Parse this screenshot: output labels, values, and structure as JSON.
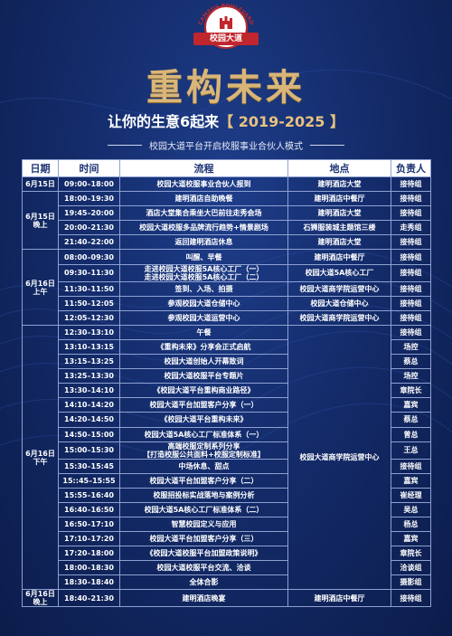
{
  "logo": {
    "arc_text": "CAMPUS BOULEVARD",
    "band_text": "校园大道"
  },
  "title": "重构未来",
  "subtitle": {
    "prefix": "让你的生意6起来",
    "years": "【 2019-2025 】"
  },
  "tagline": "校园大道平台开启校服事业合伙人模式",
  "colors": {
    "accent_gold": "#d9b678",
    "background": "#142c6b",
    "brand_red": "#c0262d"
  },
  "table": {
    "headers": [
      "日期",
      "时间",
      "流程",
      "地点",
      "负责人"
    ],
    "groups": [
      {
        "date_lines": [
          "6月15日",
          ""
        ],
        "location": null,
        "rows": [
          {
            "time": "09:00–18:00",
            "process": [
              "校园大道校服事业合伙人报到"
            ],
            "location": "建明酒店大堂",
            "owner": "接待组"
          }
        ]
      },
      {
        "date_lines": [
          "6月15日",
          "晚上"
        ],
        "location": null,
        "rows": [
          {
            "time": "18:00–19:30",
            "process": [
              "建明酒店自助晚餐"
            ],
            "location": "建明酒店中餐厅",
            "owner": "接待组"
          },
          {
            "time": "19:45–20:00",
            "process": [
              "酒店大堂集合乘坐大巴前往走秀会场"
            ],
            "location": "建明酒店大堂",
            "owner": "接待组"
          },
          {
            "time": "20:00–21:30",
            "process": [
              "校园大道校服多品牌流行趋势+情景剧场"
            ],
            "location": "石狮服装城主题馆三楼",
            "owner": "走秀组"
          },
          {
            "time": "21:40–22:00",
            "process": [
              "返回建明酒店休息"
            ],
            "location": "建明酒店大堂",
            "owner": "接待组"
          }
        ]
      },
      {
        "date_lines": [
          "6月16日",
          "上午"
        ],
        "location": null,
        "rows": [
          {
            "time": "08:00–09:30",
            "process": [
              "叫醒、早餐"
            ],
            "location": "建明酒店中餐厅",
            "owner": "接待组"
          },
          {
            "time": "09:30–11:30",
            "process": [
              "走进校园大道校服5A核心工厂（一）",
              "走进校园大道校服5A核心工厂（二）"
            ],
            "location": "校园大道5A核心工厂",
            "owner": "接待组"
          },
          {
            "time": "11:30–11:50",
            "process": [
              "签到、入场、拍摄"
            ],
            "location": "校园大道商学院运营中心",
            "owner": "接待组"
          },
          {
            "time": "11:50–12:05",
            "process": [
              "参观校园大道仓储中心"
            ],
            "location": "校园大道仓储中心",
            "owner": "接待组"
          },
          {
            "time": "12:05–12:30",
            "process": [
              "参观校园大道运营中心"
            ],
            "location": "校园大道商学院运营中心",
            "owner": "接待组"
          }
        ]
      },
      {
        "date_lines": [
          "6月16日",
          "下午"
        ],
        "location": "校园大道商学院运营中心",
        "rows": [
          {
            "time": "12:30–13:10",
            "process": [
              "午餐"
            ],
            "owner": "接待组"
          },
          {
            "time": "13:10–13:15",
            "process": [
              "《重构未来》分享会正式启航"
            ],
            "owner": "场控"
          },
          {
            "time": "13:15–13:25",
            "process": [
              "校园大道创始人开幕致词"
            ],
            "owner": "蔡总"
          },
          {
            "time": "13:25–13:30",
            "process": [
              "校园大道校服平台专题片"
            ],
            "owner": "场控"
          },
          {
            "time": "13:30–14:10",
            "process": [
              "《校园大道平台重构商业路径》"
            ],
            "owner": "章院长"
          },
          {
            "time": "14:10–14:20",
            "process": [
              "校园大道平台加盟客户分享（一）"
            ],
            "owner": "嘉宾"
          },
          {
            "time": "14:20–14:50",
            "process": [
              "《校园大道平台重构未来》"
            ],
            "owner": "蔡总"
          },
          {
            "time": "14:50–15:00",
            "process": [
              "校园大道5A核心工厂标准体系（一）"
            ],
            "owner": "曾总"
          },
          {
            "time": "15:00–15:30",
            "process": [
              "高端校服定制系列分享",
              "【打造校服公共面料+校服定制标准】"
            ],
            "owner": "王总"
          },
          {
            "time": "15:30–15:45",
            "process": [
              "中场休息、甜点"
            ],
            "owner": "接待组"
          },
          {
            "time": "15::45–15:55",
            "process": [
              "校园大道平台加盟客户分享（二）"
            ],
            "owner": "嘉宾"
          },
          {
            "time": "15:55–16:40",
            "process": [
              "校服招投标实战落地与案例分析"
            ],
            "owner": "崔经理"
          },
          {
            "time": "16:40–16:50",
            "process": [
              "校园大道5A核心工厂标准体系（二）"
            ],
            "owner": "吴总"
          },
          {
            "time": "16:50–17:10",
            "process": [
              "智慧校园定义与应用"
            ],
            "owner": "杨总"
          },
          {
            "time": "17:10–17:20",
            "process": [
              "校园大道平台加盟客户分享（三）"
            ],
            "owner": "嘉宾"
          },
          {
            "time": "17:20–18:00",
            "process": [
              "《校园大道校服平台加盟政策说明》"
            ],
            "owner": "章院长"
          },
          {
            "time": "18:00–18:30",
            "process": [
              "校园大道校服平台交流、洽谈"
            ],
            "owner": "洽谈组"
          },
          {
            "time": "18:30–18:40",
            "process": [
              "全体合影"
            ],
            "owner": "摄影组"
          }
        ]
      },
      {
        "date_lines": [
          "6月16日",
          "晚上"
        ],
        "location": null,
        "rows": [
          {
            "time": "18:40–21:30",
            "process": [
              "建明酒店晚宴"
            ],
            "location": "建明酒店中餐厅",
            "owner": "接待组"
          }
        ]
      }
    ]
  }
}
